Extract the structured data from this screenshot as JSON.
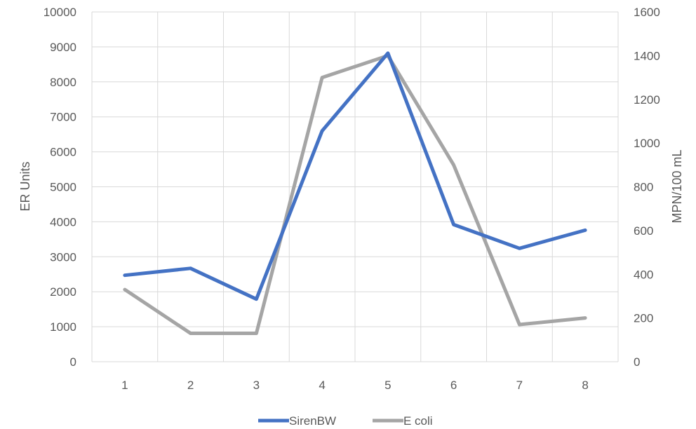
{
  "chart_data": {
    "type": "line",
    "categories": [
      "1",
      "2",
      "3",
      "4",
      "5",
      "6",
      "7",
      "8"
    ],
    "series": [
      {
        "name": "SirenBW",
        "axis": "left",
        "color": "#4472c4",
        "values": [
          2470,
          2670,
          1790,
          6600,
          8820,
          3920,
          3240,
          3760
        ]
      },
      {
        "name": "E coli",
        "axis": "right",
        "color": "#a5a5a5",
        "values": [
          330,
          130,
          130,
          1300,
          1400,
          900,
          170,
          200
        ]
      }
    ],
    "ylabel": "ER Units",
    "ylabel_right": "MPN/100 mL",
    "ylim": [
      0,
      10000
    ],
    "ylim_right": [
      0,
      1600
    ],
    "yticks": [
      "0",
      "1000",
      "2000",
      "3000",
      "4000",
      "5000",
      "6000",
      "7000",
      "8000",
      "9000",
      "10000"
    ],
    "yticks_right": [
      "0",
      "200",
      "400",
      "600",
      "800",
      "1000",
      "1200",
      "1400",
      "1600"
    ],
    "grid": true,
    "legend_position": "bottom"
  }
}
